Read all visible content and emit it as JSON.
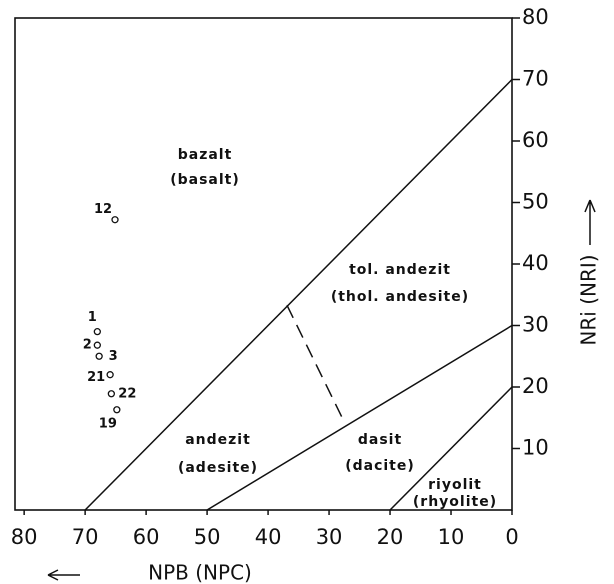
{
  "chart_data": {
    "type": "scatter",
    "xlabel": "NPB (NPC)",
    "ylabel": "NRi (NRI)",
    "xlim": [
      81.5,
      0
    ],
    "ylim": [
      0,
      80
    ],
    "xticks": [
      80,
      70,
      60,
      50,
      40,
      30,
      20,
      10,
      0
    ],
    "yticks": [
      10,
      20,
      30,
      40,
      50,
      60,
      70,
      80
    ],
    "series": [
      {
        "labels": [
          "12",
          "1",
          "2",
          "3",
          "21",
          "22",
          "19"
        ],
        "x": [
          65.1,
          68,
          68,
          67.7,
          65.9,
          65.7,
          64.8
        ],
        "values": [
          47.2,
          29,
          26.8,
          25,
          22,
          18.9,
          16.3
        ]
      }
    ],
    "boundaries": [
      {
        "x": [
          70,
          0
        ],
        "values": [
          0,
          70
        ]
      },
      {
        "x": [
          50,
          0
        ],
        "values": [
          0,
          30
        ]
      },
      {
        "x": [
          20,
          0
        ],
        "values": [
          0,
          20
        ]
      },
      {
        "x": [
          36.9,
          27.4
        ],
        "values": [
          33.3,
          14.1
        ],
        "dashed": true
      }
    ],
    "annotations": [
      "bazalt",
      "(basalt)",
      "tol. andezit",
      "(thol. andesite)",
      "andezit",
      "(adesite)",
      "dasit",
      "(dacite)",
      "riyolit",
      "(rhyolite)"
    ]
  }
}
